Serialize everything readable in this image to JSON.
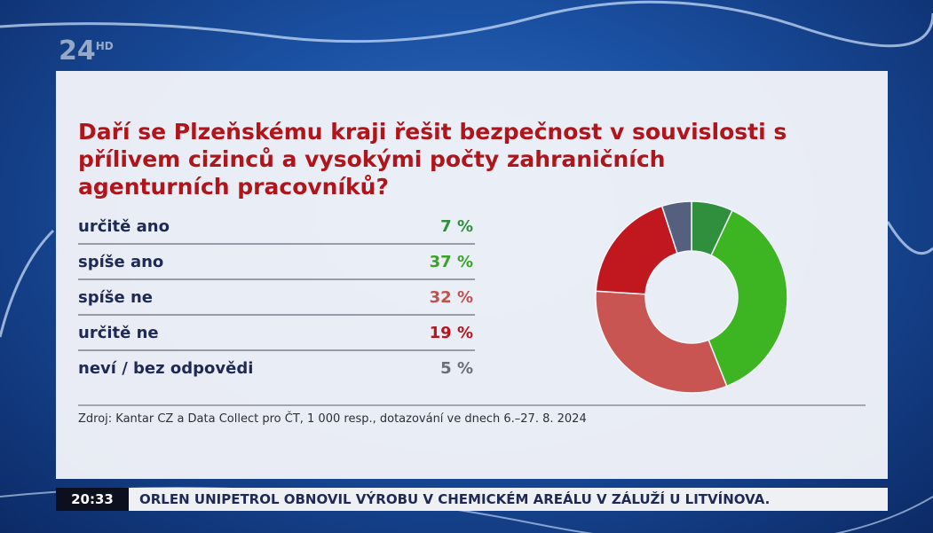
{
  "chart_data": {
    "type": "pie",
    "donut": true,
    "title": "Daří se Plzeňskému kraji řešit bezpečnost v souvislosti s přílivem cizinců a vysokými počty zahraničních agenturních pracovníků?",
    "categories": [
      "určitě ano",
      "spíše ano",
      "spíše ne",
      "určitě ne",
      "neví / bez odpovědi"
    ],
    "values": [
      7,
      37,
      32,
      19,
      5
    ],
    "value_labels": [
      "7 %",
      "37 %",
      "32 %",
      "19 %",
      "5 %"
    ],
    "colors": [
      "#2f8f3c",
      "#3db522",
      "#c95552",
      "#c0181e",
      "#55607f"
    ],
    "label_colors": [
      "#2f8f3c",
      "#3aa326",
      "#c0514e",
      "#b5161c",
      "#6b6e78"
    ],
    "source": "Zdroj: Kantar CZ a Data Collect pro ČT, 1 000 resp., dotazování ve dnech 6.–27. 8. 2024"
  },
  "broadcast": {
    "logo": "24",
    "logo_sup": "HD",
    "time": "20:33",
    "ticker": "ORLEN UNIPETROL OBNOVIL VÝROBU V CHEMICKÉM AREÁLU V ZÁLUŽÍ U LITVÍNOVA."
  }
}
